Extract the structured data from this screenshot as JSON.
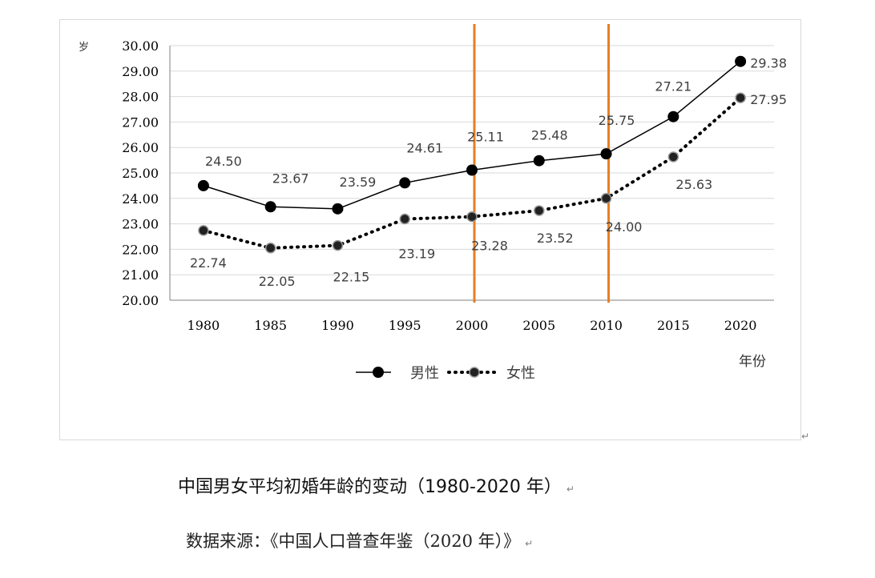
{
  "caption": "中国男女平均初婚年龄的变动（1980-2020 年）",
  "source": "数据来源：《中国人口普查年鉴（2020 年）》",
  "return_mark": "↵",
  "chart_data": {
    "type": "line",
    "title": "",
    "xlabel": "年份",
    "ylabel": "岁",
    "categories": [
      "1980",
      "1985",
      "1990",
      "1995",
      "2000",
      "2005",
      "2010",
      "2015",
      "2020"
    ],
    "ylim": [
      20,
      30
    ],
    "yticks": [
      "20.00",
      "21.00",
      "22.00",
      "23.00",
      "24.00",
      "25.00",
      "26.00",
      "27.00",
      "28.00",
      "29.00",
      "30.00"
    ],
    "grid": true,
    "legend_position": "bottom",
    "series": [
      {
        "name": "男性",
        "style": "solid",
        "color": "#000000",
        "values": [
          24.5,
          23.67,
          23.59,
          24.61,
          25.11,
          25.48,
          25.75,
          27.21,
          29.38
        ],
        "labels": [
          "24.50",
          "23.67",
          "23.59",
          "24.61",
          "25.11",
          "25.48",
          "25.75",
          "27.21",
          "29.38"
        ]
      },
      {
        "name": "女性",
        "style": "dotted",
        "color": "#000000",
        "values": [
          22.74,
          22.05,
          22.15,
          23.19,
          23.28,
          23.52,
          24.0,
          25.63,
          27.95
        ],
        "labels": [
          "22.74",
          "22.05",
          "22.15",
          "23.19",
          "23.28",
          "23.52",
          "24.00",
          "25.63",
          "27.95"
        ]
      }
    ],
    "highlight_lines": {
      "at": [
        "2000",
        "2010"
      ],
      "color": "#e67e22"
    }
  }
}
